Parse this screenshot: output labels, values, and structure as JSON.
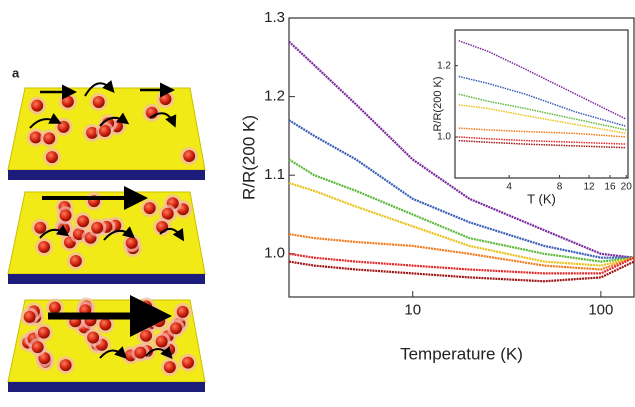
{
  "figure": {
    "panel_label": "a"
  },
  "chart_data": [
    {
      "type": "line",
      "xscale": "log",
      "xlabel": "Temperature (K)",
      "ylabel": "R/R(200 K)",
      "x": [
        2.2,
        3,
        5,
        10,
        20,
        50,
        100,
        150
      ],
      "xlim": [
        2.2,
        150
      ],
      "xticks": [
        10,
        100
      ],
      "ylim": [
        0.945,
        1.3
      ],
      "yticks": [
        {
          "value": 1,
          "label": "1.0"
        },
        1.1,
        1.2,
        1.3
      ],
      "series": [
        {
          "color": "#7b2a9c",
          "values": [
            1.27,
            1.24,
            1.19,
            1.12,
            1.07,
            1.03,
            1.0,
            0.995
          ]
        },
        {
          "color": "#3a5fb8",
          "values": [
            1.17,
            1.15,
            1.12,
            1.07,
            1.04,
            1.01,
            0.995,
            0.995
          ]
        },
        {
          "color": "#5cb83a",
          "values": [
            1.12,
            1.1,
            1.08,
            1.05,
            1.02,
            1.0,
            0.99,
            0.995
          ]
        },
        {
          "color": "#e8c21a",
          "values": [
            1.09,
            1.08,
            1.06,
            1.035,
            1.01,
            0.99,
            0.985,
            0.995
          ]
        },
        {
          "color": "#f07a1c",
          "values": [
            1.025,
            1.02,
            1.015,
            1.01,
            1.0,
            0.985,
            0.98,
            0.995
          ]
        },
        {
          "color": "#e0282a",
          "values": [
            1.0,
            0.995,
            0.99,
            0.985,
            0.98,
            0.975,
            0.975,
            0.995
          ]
        },
        {
          "color": "#9c1414",
          "values": [
            0.99,
            0.985,
            0.98,
            0.975,
            0.97,
            0.965,
            0.97,
            0.99
          ]
        }
      ]
    },
    {
      "type": "line",
      "xscale": "log",
      "xlabel": "T  (K)",
      "ylabel": "R/R(200 K)",
      "x": [
        2,
        3,
        5,
        10,
        20
      ],
      "xlim": [
        1.9,
        20.5
      ],
      "xticks": [
        4,
        8,
        12,
        16,
        20
      ],
      "ylim": [
        0.885,
        1.3
      ],
      "yticks": [
        {
          "value": 1,
          "label": "1.0"
        },
        1.2
      ],
      "series": [
        {
          "color": "#7b2a9c",
          "values": [
            1.27,
            1.24,
            1.19,
            1.12,
            1.05
          ]
        },
        {
          "color": "#3a5fb8",
          "values": [
            1.17,
            1.15,
            1.12,
            1.07,
            1.03
          ]
        },
        {
          "color": "#5cb83a",
          "values": [
            1.12,
            1.1,
            1.08,
            1.05,
            1.02
          ]
        },
        {
          "color": "#e8c21a",
          "values": [
            1.09,
            1.08,
            1.06,
            1.035,
            1.01
          ]
        },
        {
          "color": "#f07a1c",
          "values": [
            1.025,
            1.02,
            1.015,
            1.01,
            1.0
          ]
        },
        {
          "color": "#e0282a",
          "values": [
            1.0,
            0.995,
            0.99,
            0.985,
            0.98
          ]
        },
        {
          "color": "#9c1414",
          "values": [
            0.99,
            0.985,
            0.98,
            0.975,
            0.97
          ]
        }
      ]
    }
  ]
}
